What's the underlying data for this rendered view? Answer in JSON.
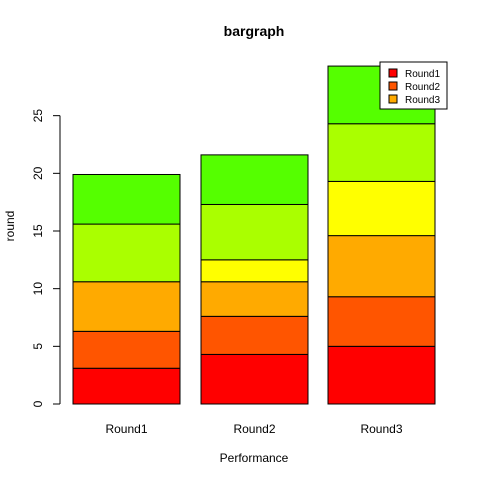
{
  "chart_data": {
    "type": "bar",
    "stacked": true,
    "title": "bargraph",
    "xlabel": "Performance",
    "ylabel": "round",
    "categories": [
      "Round1",
      "Round2",
      "Round3"
    ],
    "ylim": [
      0,
      30
    ],
    "yticks": [
      0,
      5,
      10,
      15,
      20,
      25
    ],
    "grid": false,
    "legend": {
      "position": "top-right",
      "entries": [
        {
          "label": "Round1",
          "color": "#FF0000"
        },
        {
          "label": "Round2",
          "color": "#FF5500"
        },
        {
          "label": "Round3",
          "color": "#FFAA00"
        }
      ]
    },
    "segment_colors": [
      "#FF0000",
      "#FF5500",
      "#FFAA00",
      "#FFFF00",
      "#AAFF00",
      "#55FF00"
    ],
    "series": [
      {
        "values": [
          3.1,
          4.3,
          5.0
        ]
      },
      {
        "values": [
          3.2,
          3.3,
          4.3
        ]
      },
      {
        "values": [
          4.3,
          3.0,
          5.3
        ]
      },
      {
        "values": [
          0.0,
          1.9,
          4.7
        ]
      },
      {
        "values": [
          5.0,
          4.8,
          5.0
        ]
      },
      {
        "values": [
          4.3,
          4.3,
          5.0
        ]
      }
    ]
  }
}
